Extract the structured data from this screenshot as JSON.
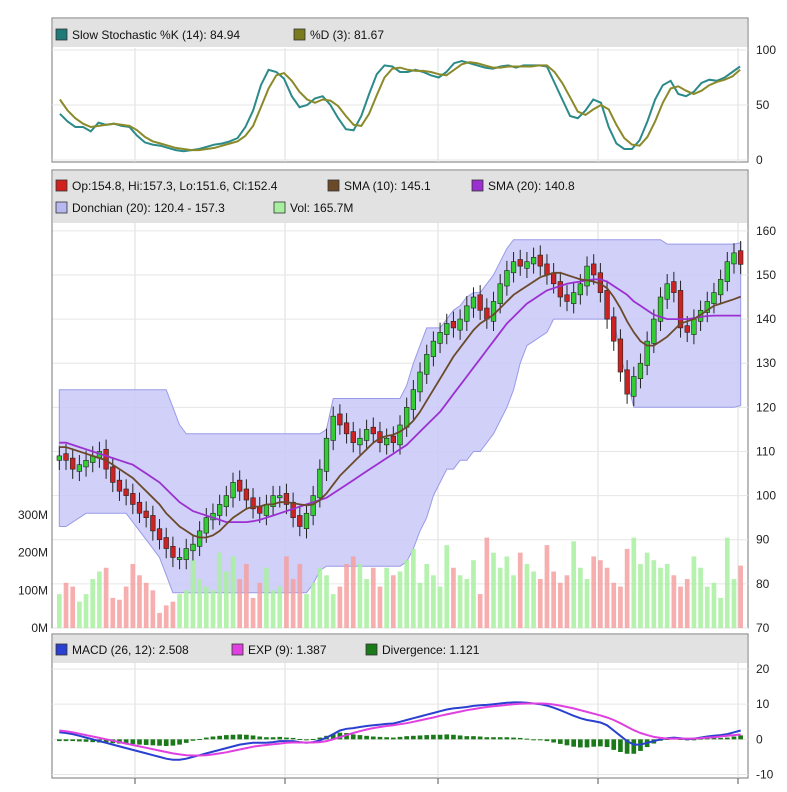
{
  "chart_data": [
    {
      "type": "line",
      "name": "stochastic-panel",
      "legend": [
        {
          "label": "Slow Stochastic %K (14): 84.94",
          "color": "#1f7a78"
        },
        {
          "label": "%D (3): 81.67",
          "color": "#7a7a1f"
        }
      ],
      "y_ticks": [
        "100",
        "50",
        "0"
      ],
      "ylim": [
        0,
        100
      ],
      "series": [
        {
          "name": "Slow Stochastic %K (14)",
          "color": "#2b8a8a",
          "values": [
            42,
            35,
            30,
            30,
            26,
            34,
            32,
            33,
            31,
            30,
            22,
            16,
            14,
            13,
            11,
            9,
            8,
            9,
            10,
            12,
            14,
            15,
            17,
            20,
            30,
            45,
            68,
            82,
            80,
            74,
            58,
            48,
            50,
            56,
            58,
            50,
            38,
            28,
            27,
            40,
            60,
            78,
            86,
            85,
            80,
            80,
            82,
            80,
            77,
            75,
            80,
            88,
            90,
            88,
            86,
            84,
            83,
            85,
            86,
            84,
            86,
            86,
            86,
            85,
            70,
            55,
            40,
            38,
            45,
            55,
            52,
            30,
            15,
            10,
            10,
            18,
            35,
            55,
            68,
            72,
            60,
            58,
            62,
            70,
            73,
            72,
            75,
            80,
            85
          ]
        },
        {
          "name": "%D (3)",
          "color": "#8a8a2a",
          "values": [
            55,
            45,
            38,
            33,
            30,
            31,
            32,
            33,
            32,
            31,
            27,
            21,
            17,
            15,
            13,
            11,
            10,
            9,
            9,
            10,
            11,
            13,
            15,
            17,
            22,
            31,
            48,
            65,
            77,
            79,
            72,
            62,
            55,
            52,
            55,
            54,
            49,
            40,
            32,
            31,
            42,
            59,
            75,
            83,
            84,
            82,
            81,
            81,
            80,
            78,
            77,
            82,
            87,
            89,
            88,
            86,
            84,
            84,
            85,
            85,
            85,
            85,
            86,
            86,
            80,
            70,
            57,
            44,
            41,
            46,
            50,
            46,
            32,
            20,
            14,
            13,
            21,
            35,
            52,
            65,
            67,
            63,
            60,
            63,
            68,
            71,
            73,
            76,
            82
          ]
        }
      ]
    },
    {
      "type": "candlestick",
      "name": "price-panel",
      "legend": [
        {
          "label": "Op:154.8, Hi:157.3, Lo:151.6, Cl:152.4",
          "color": "#d02020"
        },
        {
          "label": "SMA (10): 145.1",
          "color": "#6b4a2a"
        },
        {
          "label": "SMA (20): 140.8",
          "color": "#9b30d0"
        },
        {
          "label": "Donchian (20): 120.4 - 157.3",
          "color": "#b8b8f0"
        },
        {
          "label": "Vol: 165.7M",
          "color": "#a8f0a0"
        }
      ],
      "y_ticks": [
        "160",
        "150",
        "140",
        "130",
        "120",
        "110",
        "100",
        "90",
        "80",
        "70"
      ],
      "ylim": [
        70,
        162
      ],
      "volume_ticks": [
        "300M",
        "200M",
        "100M",
        "0M"
      ],
      "volume_max": 300,
      "close": [
        109,
        108,
        106,
        107,
        108,
        109,
        110,
        106,
        103,
        101,
        100,
        98,
        96,
        95,
        92,
        90,
        88,
        86,
        86,
        88,
        89,
        92,
        95,
        96,
        98,
        100,
        103,
        101,
        99,
        97,
        96,
        98,
        100,
        100,
        98,
        95,
        93,
        96,
        100,
        106,
        113,
        118,
        116,
        114,
        112,
        113,
        115,
        114,
        112,
        113,
        112,
        116,
        120,
        124,
        128,
        132,
        135,
        137,
        139,
        138,
        140,
        143,
        145,
        142,
        140,
        144,
        148,
        151,
        153,
        152,
        153,
        154,
        152,
        150,
        148,
        145,
        144,
        146,
        148,
        152,
        150,
        146,
        140,
        135,
        128,
        123,
        127,
        130,
        135,
        140,
        145,
        148,
        146,
        138,
        137,
        140,
        142,
        144,
        146,
        149,
        153,
        155,
        152.4
      ],
      "sma10": [
        111,
        111,
        110.5,
        110,
        109.5,
        109,
        108.5,
        108,
        107,
        106,
        105,
        104,
        102.5,
        101,
        99.5,
        98,
        96,
        94.5,
        93,
        92,
        91,
        90.5,
        90.5,
        91,
        92,
        93.5,
        95,
        96,
        97,
        97.5,
        97.5,
        98,
        98,
        98.5,
        98.5,
        98.3,
        98,
        97.8,
        98,
        99,
        100.5,
        102.5,
        104.5,
        106,
        107.5,
        109,
        110.5,
        112,
        113,
        113.5,
        113.8,
        114.5,
        115.5,
        117,
        119,
        121.5,
        124,
        126.5,
        129,
        131.5,
        133.5,
        135.5,
        137.5,
        139,
        140,
        141,
        142.5,
        144,
        145.5,
        146.5,
        147.5,
        148.5,
        149.5,
        150,
        150.5,
        150.5,
        150,
        149.5,
        149,
        148.8,
        148.5,
        148,
        147,
        145,
        142.5,
        139.5,
        137,
        135,
        134,
        134,
        135,
        136,
        137.5,
        139,
        139.5,
        140,
        141,
        142,
        143,
        143.5,
        144,
        144.5,
        145.1
      ],
      "sma20": [
        112,
        112,
        111.5,
        111,
        110.5,
        110,
        109.5,
        109,
        108.5,
        108,
        107.5,
        107,
        106,
        105,
        104,
        103,
        101.5,
        100,
        98.5,
        97.5,
        96.5,
        96,
        95.5,
        95,
        94.5,
        94,
        94,
        94,
        94,
        94.2,
        94.5,
        95,
        95.5,
        96,
        96.5,
        97,
        97.5,
        98,
        98.5,
        99,
        99.5,
        100.5,
        101.5,
        102.5,
        103.5,
        104.5,
        105.5,
        106.5,
        107.5,
        108.5,
        109.5,
        110.5,
        111.5,
        113,
        114.5,
        116,
        117.5,
        119,
        121,
        123,
        125,
        127,
        129,
        131,
        133,
        135,
        137,
        139,
        140.5,
        142,
        143.5,
        144.5,
        145.5,
        146.5,
        147,
        147.5,
        148,
        148.3,
        148.5,
        148.8,
        149,
        149,
        148.5,
        147.5,
        146.5,
        145.5,
        144,
        143,
        142,
        141,
        140.5,
        140,
        140,
        140,
        140,
        140.2,
        140.5,
        140.7,
        140.8,
        140.8,
        140.8,
        140.8,
        140.8
      ],
      "donchian_upper": [
        124,
        124,
        124,
        124,
        124,
        124,
        124,
        124,
        124,
        124,
        124,
        124,
        124,
        124,
        124,
        124,
        124,
        120,
        116,
        114,
        114,
        114,
        114,
        114,
        114,
        114,
        114,
        114,
        114,
        114,
        114,
        114,
        114,
        114,
        114,
        114,
        114,
        114,
        114,
        114,
        115,
        122,
        122,
        122,
        122,
        122,
        122,
        122,
        122,
        122,
        122,
        122,
        125,
        130,
        134,
        138,
        138,
        138,
        140,
        142,
        143,
        145,
        146,
        146,
        148,
        150,
        153,
        156,
        158,
        158,
        158,
        158,
        158,
        158,
        158,
        158,
        158,
        158,
        158,
        158,
        158,
        158,
        158,
        158,
        158,
        158,
        158,
        158,
        158,
        158,
        158,
        157,
        157,
        157,
        157,
        157,
        157,
        157,
        157,
        157,
        157,
        157,
        157.3
      ],
      "donchian_lower": [
        93,
        93,
        94,
        95,
        96,
        96,
        96,
        96,
        96,
        96,
        96,
        94,
        92,
        90,
        88,
        86,
        82,
        78,
        78,
        78,
        78,
        78,
        78,
        78,
        78,
        78,
        78,
        78,
        78,
        78,
        78,
        78,
        78,
        78,
        78,
        78,
        78,
        78,
        80,
        83,
        84,
        84,
        84,
        84,
        84,
        84,
        84,
        84,
        84,
        84,
        84,
        84,
        85,
        88,
        92,
        95,
        100,
        103,
        106,
        106,
        108,
        108,
        110,
        110,
        112,
        114,
        117,
        120,
        124,
        130,
        134,
        135,
        136,
        137,
        140,
        140,
        140,
        140,
        140,
        140,
        140,
        140,
        140,
        140,
        132,
        126,
        120,
        120,
        120,
        120,
        120,
        120,
        120,
        120,
        120,
        120,
        120,
        120,
        120,
        120,
        120,
        120,
        120.4
      ],
      "volume": [
        90,
        120,
        110,
        70,
        90,
        130,
        150,
        160,
        80,
        75,
        110,
        170,
        140,
        120,
        100,
        40,
        60,
        70,
        90,
        100,
        180,
        130,
        110,
        100,
        200,
        150,
        190,
        130,
        170,
        80,
        120,
        160,
        100,
        110,
        190,
        130,
        170,
        90,
        120,
        160,
        140,
        90,
        110,
        170,
        190,
        170,
        130,
        160,
        110,
        160,
        140,
        150,
        180,
        210,
        120,
        170,
        140,
        110,
        220,
        160,
        140,
        130,
        180,
        90,
        240,
        200,
        160,
        190,
        140,
        200,
        170,
        150,
        130,
        220,
        150,
        120,
        140,
        230,
        160,
        130,
        190,
        180,
        160,
        120,
        110,
        210,
        240,
        170,
        200,
        180,
        160,
        170,
        140,
        110,
        130,
        190,
        160,
        110,
        120,
        80,
        240,
        130,
        165.7
      ]
    },
    {
      "type": "line",
      "name": "macd-panel",
      "legend": [
        {
          "label": "MACD (26, 12): 2.508",
          "color": "#2a40d0"
        },
        {
          "label": "EXP (9): 1.387",
          "color": "#e040e0"
        },
        {
          "label": "Divergence: 1.121",
          "color": "#1a7a1a"
        }
      ],
      "y_ticks": [
        "20",
        "10",
        "0",
        "-10"
      ],
      "ylim": [
        -11,
        22
      ],
      "series": [
        {
          "name": "MACD (26, 12)",
          "color": "#2a40d0",
          "values": [
            2,
            1.8,
            1.5,
            1,
            0.5,
            0,
            -0.5,
            -1,
            -1.5,
            -2,
            -2.5,
            -3,
            -3.5,
            -4,
            -4.5,
            -5,
            -5.5,
            -5.8,
            -5.8,
            -5.5,
            -5,
            -4.5,
            -4,
            -3.5,
            -3,
            -2.5,
            -2,
            -1.5,
            -1.2,
            -1,
            -1,
            -1,
            -0.8,
            -0.5,
            -0.5,
            -0.5,
            -0.8,
            -1,
            -0.8,
            -0.3,
            0.5,
            1.5,
            2.5,
            3,
            3.2,
            3.5,
            3.8,
            4,
            4.2,
            4.4,
            4.5,
            5,
            5.5,
            6,
            6.5,
            7,
            7.5,
            8,
            8.5,
            8.8,
            9,
            9.2,
            9.5,
            9.7,
            9.8,
            10,
            10.2,
            10.4,
            10.5,
            10.5,
            10.4,
            10.2,
            10,
            9.6,
            9,
            8.3,
            7.5,
            6.7,
            6,
            5.5,
            5.2,
            4.8,
            4,
            2.5,
            1,
            -0.5,
            -1.5,
            -1.5,
            -1,
            -0.5,
            0,
            0.3,
            0.5,
            0.3,
            0,
            0.2,
            0.5,
            0.8,
            1,
            1.2,
            1.5,
            2,
            2.5
          ]
        },
        {
          "name": "EXP (9)",
          "color": "#e040e0",
          "values": [
            2.5,
            2.3,
            2,
            1.6,
            1.2,
            0.8,
            0.4,
            0,
            -0.4,
            -0.8,
            -1.2,
            -1.6,
            -2,
            -2.4,
            -2.8,
            -3.2,
            -3.6,
            -4,
            -4.3,
            -4.5,
            -4.6,
            -4.6,
            -4.5,
            -4.3,
            -4,
            -3.7,
            -3.3,
            -2.9,
            -2.5,
            -2.1,
            -1.8,
            -1.6,
            -1.4,
            -1.2,
            -1,
            -0.9,
            -0.9,
            -0.9,
            -0.9,
            -0.8,
            -0.5,
            0,
            0.6,
            1.2,
            1.8,
            2.3,
            2.8,
            3.2,
            3.5,
            3.8,
            4,
            4.3,
            4.6,
            5,
            5.4,
            5.8,
            6.2,
            6.7,
            7.1,
            7.5,
            7.9,
            8.3,
            8.6,
            8.9,
            9.2,
            9.4,
            9.6,
            9.8,
            10,
            10.1,
            10.2,
            10.2,
            10.2,
            10.1,
            9.9,
            9.6,
            9.2,
            8.8,
            8.3,
            7.8,
            7.3,
            6.8,
            6.2,
            5.5,
            4.6,
            3.6,
            2.6,
            1.8,
            1.2,
            0.7,
            0.4,
            0.2,
            0.2,
            0.2,
            0.2,
            0.2,
            0.3,
            0.5,
            0.6,
            0.8,
            1,
            1.2,
            1.387
          ]
        },
        {
          "name": "Divergence",
          "color": "#1a7a1a",
          "bars": true,
          "values": [
            -0.5,
            -0.5,
            -0.5,
            -0.6,
            -0.7,
            -0.8,
            -0.9,
            -1,
            -1.1,
            -1.2,
            -1.3,
            -1.4,
            -1.5,
            -1.6,
            -1.7,
            -1.8,
            -1.9,
            -1.8,
            -1.5,
            -1,
            -0.4,
            0.1,
            0.5,
            0.8,
            1,
            1.2,
            1.3,
            1.4,
            1.3,
            1.1,
            0.8,
            0.6,
            0.6,
            0.7,
            0.5,
            0.4,
            0.1,
            -0.1,
            0.1,
            0.5,
            1,
            1.5,
            1.9,
            1.8,
            1.4,
            1.2,
            1,
            0.8,
            0.7,
            0.6,
            0.5,
            0.7,
            0.9,
            1,
            1.1,
            1.2,
            1.3,
            1.3,
            1.4,
            1.3,
            1.1,
            0.9,
            0.9,
            0.8,
            0.6,
            0.6,
            0.6,
            0.6,
            0.5,
            0.4,
            0.2,
            0,
            -0.2,
            -0.5,
            -0.9,
            -1.3,
            -1.7,
            -2.1,
            -2.3,
            -2.3,
            -2.1,
            -2,
            -2.2,
            -3,
            -3.6,
            -4.1,
            -4.1,
            -3.3,
            -2.2,
            -1.2,
            -0.4,
            0.1,
            0.3,
            0.1,
            -0.2,
            0,
            0.2,
            0.3,
            0.4,
            0.4,
            0.5,
            0.8,
            1.121
          ]
        }
      ]
    }
  ]
}
